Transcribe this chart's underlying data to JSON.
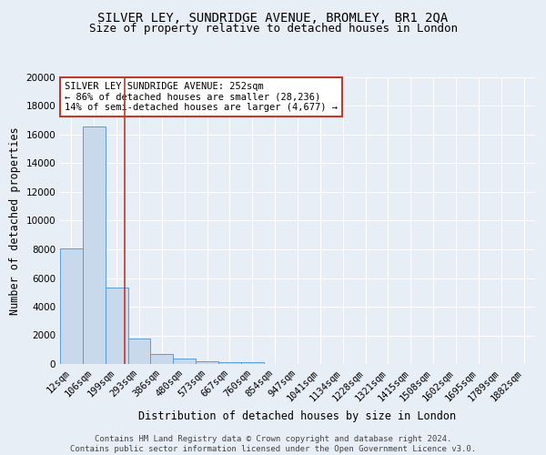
{
  "title": "SILVER LEY, SUNDRIDGE AVENUE, BROMLEY, BR1 2QA",
  "subtitle": "Size of property relative to detached houses in London",
  "xlabel": "Distribution of detached houses by size in London",
  "ylabel": "Number of detached properties",
  "categories": [
    "12sqm",
    "106sqm",
    "199sqm",
    "293sqm",
    "386sqm",
    "480sqm",
    "573sqm",
    "667sqm",
    "760sqm",
    "854sqm",
    "947sqm",
    "1041sqm",
    "1134sqm",
    "1228sqm",
    "1321sqm",
    "1415sqm",
    "1508sqm",
    "1602sqm",
    "1695sqm",
    "1789sqm",
    "1882sqm"
  ],
  "values": [
    8050,
    16600,
    5350,
    1750,
    680,
    350,
    200,
    150,
    120,
    0,
    0,
    0,
    0,
    0,
    0,
    0,
    0,
    0,
    0,
    0,
    0
  ],
  "bar_color": "#c8d9ec",
  "bar_edge_color": "#5b9bd5",
  "bg_color": "#e8eef6",
  "grid_color": "#ffffff",
  "vline_x": 2.35,
  "vline_color": "#c0392b",
  "annotation_text": "SILVER LEY SUNDRIDGE AVENUE: 252sqm\n← 86% of detached houses are smaller (28,236)\n14% of semi-detached houses are larger (4,677) →",
  "annotation_box_color": "#ffffff",
  "annotation_box_edge": "#c0392b",
  "ylim": [
    0,
    20000
  ],
  "yticks": [
    0,
    2000,
    4000,
    6000,
    8000,
    10000,
    12000,
    14000,
    16000,
    18000,
    20000
  ],
  "footer": "Contains HM Land Registry data © Crown copyright and database right 2024.\nContains public sector information licensed under the Open Government Licence v3.0.",
  "title_fontsize": 10,
  "subtitle_fontsize": 9,
  "axis_label_fontsize": 8.5,
  "tick_fontsize": 7.5,
  "annotation_fontsize": 7.5,
  "footer_fontsize": 6.5
}
